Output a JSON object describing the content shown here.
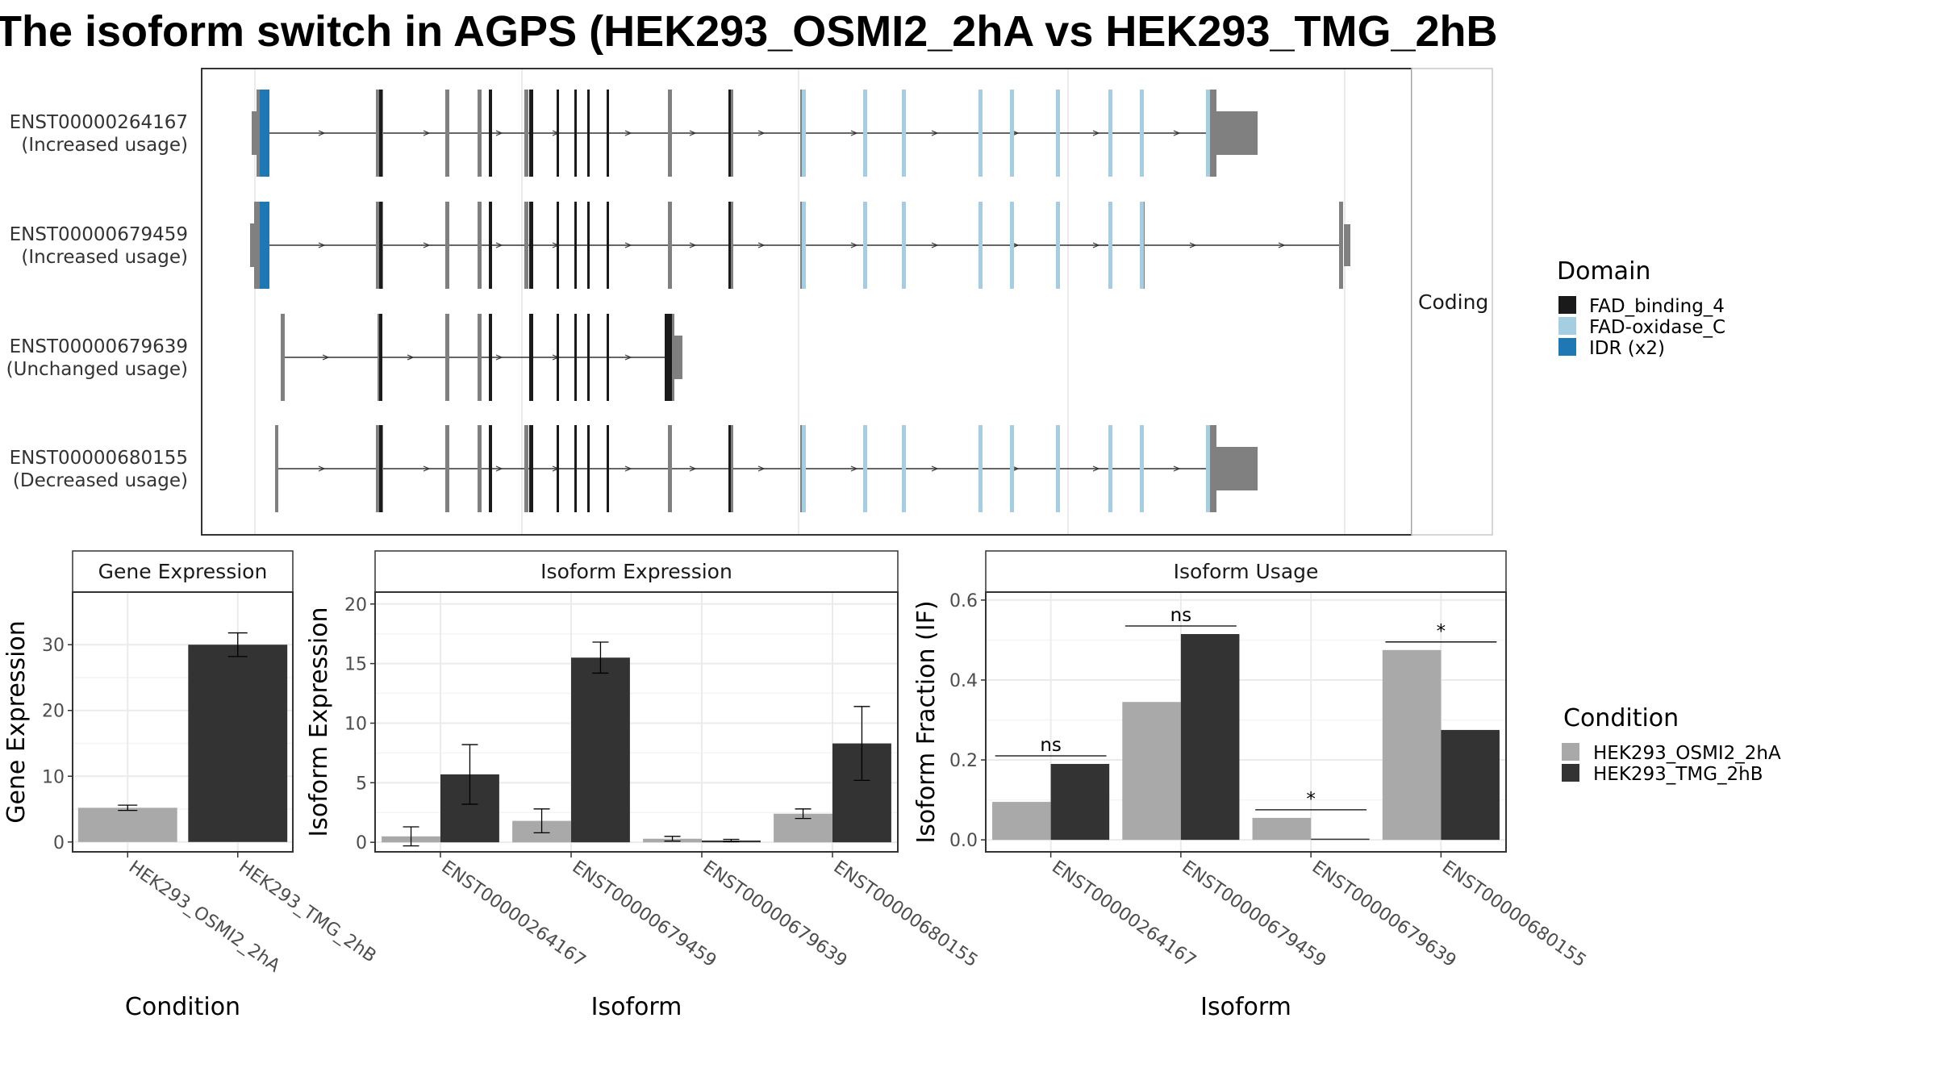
{
  "title": "The isoform switch in AGPS (HEK293_OSMI2_2hA vs HEK293_TMG_2hB",
  "colors": {
    "cond_a": "#a9a9a9",
    "cond_b": "#333333",
    "utr": "#808080",
    "domain_fad_binding_4": "#1a1a1a",
    "domain_fad_oxidase_c": "#a6cee3",
    "domain_idr": "#1f78b4"
  },
  "chart_data": [
    {
      "type": "transcript_structure",
      "facet_label": "Coding",
      "transcripts": [
        {
          "id": "ENST00000264167",
          "usage": "(Increased usage)"
        },
        {
          "id": "ENST00000679459",
          "usage": "(Increased usage)"
        },
        {
          "id": "ENST00000679639",
          "usage": "(Unchanged usage)"
        },
        {
          "id": "ENST00000680155",
          "usage": "(Decreased usage)"
        }
      ],
      "legend": {
        "title": "Domain",
        "entries": [
          {
            "label": "FAD_binding_4",
            "color": "#1a1a1a"
          },
          {
            "label": "FAD-oxidase_C",
            "color": "#a6cee3"
          },
          {
            "label": "IDR (x2)",
            "color": "#1f78b4"
          }
        ]
      }
    },
    {
      "type": "bar",
      "strip": "Gene Expression",
      "xlabel": "Condition",
      "ylabel": "Gene Expression",
      "categories": [
        "HEK293_OSMI2_2hA",
        "HEK293_TMG_2hB"
      ],
      "values": [
        5.2,
        30.0
      ],
      "errors": [
        0.4,
        1.8
      ],
      "ylim": [
        -1.5,
        38
      ],
      "yticks": [
        0,
        10,
        20,
        30
      ]
    },
    {
      "type": "bar",
      "strip": "Isoform Expression",
      "xlabel": "Isoform",
      "ylabel": "Isoform Expression",
      "categories": [
        "ENST00000264167",
        "ENST00000679459",
        "ENST00000679639",
        "ENST00000680155"
      ],
      "series": [
        {
          "name": "HEK293_OSMI2_2hA",
          "values": [
            0.5,
            1.8,
            0.3,
            2.4
          ],
          "errors": [
            0.8,
            1.0,
            0.2,
            0.4
          ]
        },
        {
          "name": "HEK293_TMG_2hB",
          "values": [
            5.7,
            15.5,
            0.15,
            8.3
          ],
          "errors": [
            2.5,
            1.3,
            0.1,
            3.1
          ]
        }
      ],
      "ylim": [
        -0.8,
        21
      ],
      "yticks": [
        0,
        5,
        10,
        15,
        20
      ]
    },
    {
      "type": "bar",
      "strip": "Isoform Usage",
      "xlabel": "Isoform",
      "ylabel": "Isoform Fraction (IF)",
      "categories": [
        "ENST00000264167",
        "ENST00000679459",
        "ENST00000679639",
        "ENST00000680155"
      ],
      "series": [
        {
          "name": "HEK293_OSMI2_2hA",
          "values": [
            0.095,
            0.345,
            0.055,
            0.475
          ]
        },
        {
          "name": "HEK293_TMG_2hB",
          "values": [
            0.19,
            0.515,
            0.003,
            0.275
          ]
        }
      ],
      "significance": [
        "ns",
        "ns",
        "*",
        "*"
      ],
      "ylim": [
        -0.03,
        0.62
      ],
      "yticks": [
        "0.0",
        "0.2",
        "0.4",
        "0.6"
      ],
      "legend": {
        "title": "Condition",
        "entries": [
          {
            "label": "HEK293_OSMI2_2hA",
            "color": "#a9a9a9"
          },
          {
            "label": "HEK293_TMG_2hB",
            "color": "#333333"
          }
        ]
      }
    }
  ]
}
